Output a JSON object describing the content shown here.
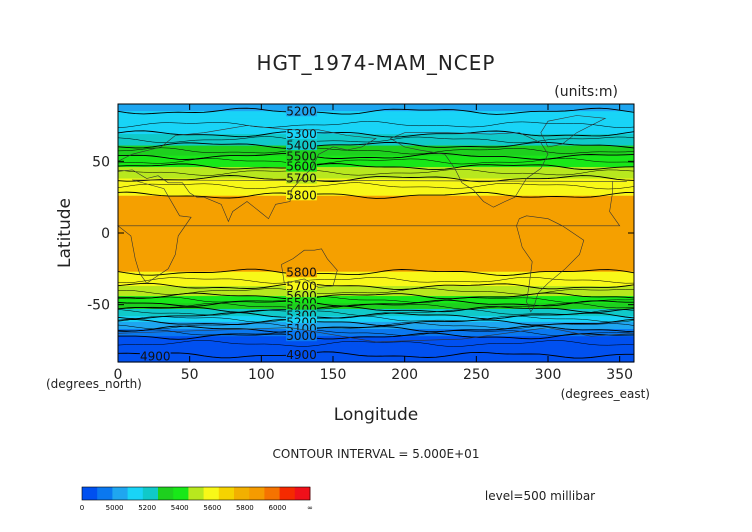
{
  "chart_data": {
    "type": "heatmap",
    "title": "HGT_1974-MAM_NCEP",
    "units_note": "(units:m)",
    "xlabel": "Longitude",
    "ylabel": "Latitude",
    "x_unit_label": "(degrees_east)",
    "y_unit_label": "(degrees_north)",
    "xlim": [
      0,
      360
    ],
    "ylim": [
      -90,
      90
    ],
    "x_ticks": [
      0,
      50,
      100,
      150,
      200,
      250,
      300,
      350
    ],
    "y_ticks": [
      50,
      0,
      -50
    ],
    "contour_interval_text": "CONTOUR INTERVAL = 5.000E+01",
    "level_text": "level=500 millibar",
    "contour_labels": [
      "5200",
      "5300",
      "5400",
      "5500",
      "5600",
      "5700",
      "5800",
      "5800",
      "5700",
      "5600",
      "5500",
      "5400",
      "5300",
      "5200",
      "5100",
      "5000",
      "4900",
      "4900"
    ],
    "lat_profile": [
      {
        "lat": 90,
        "value": 5180
      },
      {
        "lat": 80,
        "value": 5220
      },
      {
        "lat": 70,
        "value": 5290
      },
      {
        "lat": 62,
        "value": 5390
      },
      {
        "lat": 55,
        "value": 5480
      },
      {
        "lat": 48,
        "value": 5580
      },
      {
        "lat": 40,
        "value": 5680
      },
      {
        "lat": 32,
        "value": 5760
      },
      {
        "lat": 25,
        "value": 5810
      },
      {
        "lat": 0,
        "value": 5860
      },
      {
        "lat": -25,
        "value": 5820
      },
      {
        "lat": -32,
        "value": 5760
      },
      {
        "lat": -38,
        "value": 5690
      },
      {
        "lat": -44,
        "value": 5600
      },
      {
        "lat": -49,
        "value": 5500
      },
      {
        "lat": -54,
        "value": 5380
      },
      {
        "lat": -60,
        "value": 5250
      },
      {
        "lat": -66,
        "value": 5120
      },
      {
        "lat": -72,
        "value": 5000
      },
      {
        "lat": -80,
        "value": 4920
      },
      {
        "lat": -90,
        "value": 4880
      }
    ],
    "colorbar": {
      "tick_labels": [
        "0",
        "5000",
        "5200",
        "5400",
        "5600",
        "5800",
        "6000",
        "∞"
      ],
      "colors": [
        "#0050f0",
        "#0a78f0",
        "#1fa6f0",
        "#19d4f7",
        "#10c9c9",
        "#1ed01e",
        "#18e818",
        "#b8e81e",
        "#f8f818",
        "#f5d300",
        "#f2b000",
        "#f59b00",
        "#f57300",
        "#f52a00",
        "#f0101a"
      ]
    },
    "band_colors": {
      "below_5000": "#0050f0",
      "5000_5100": "#0a78f0",
      "5100_5200": "#1fa6f0",
      "5200_5300": "#19d4f7",
      "5300_5400": "#10c9c9",
      "5400_5500": "#1ed01e",
      "5500_5600": "#18e818",
      "5600_5700": "#b8e81e",
      "5700_5800": "#f8f818",
      "5800_5900": "#f5a000"
    }
  }
}
